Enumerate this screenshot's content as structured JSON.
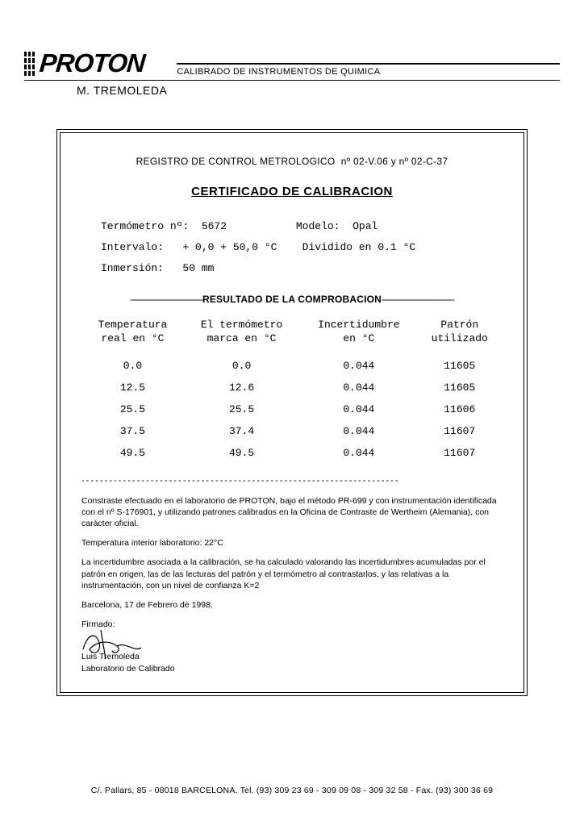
{
  "header": {
    "company": "PROTON",
    "right_text": "CALIBRADO DE INSTRUMENTOS DE QUIMICA",
    "subtitle": "M. TREMOLEDA"
  },
  "certificate": {
    "registro_label": "REGISTRO DE CONTROL METROLOGICO",
    "registro_nums": "nº 02-V.06 y nº 02-C-37",
    "title": "CERTIFICADO DE CALIBRACION",
    "info": {
      "termometro_label": "Termómetro nº:",
      "termometro_value": "5672",
      "modelo_label": "Modelo:",
      "modelo_value": "Opal",
      "intervalo_label": "Intervalo:",
      "intervalo_value": "+ 0,0 + 50,0 °C",
      "dividido_label": "Dividido en",
      "dividido_value": "0.1 °C",
      "inmersion_label": "Inmersión:",
      "inmersion_value": "50 mm"
    },
    "results_header": "RESULTADO DE LA COMPROBACION",
    "columns": {
      "col1_line1": "Temperatura",
      "col1_line2": "real en °C",
      "col2_line1": "El termómetro",
      "col2_line2": "marca en °C",
      "col3_line1": "Incertidumbre",
      "col3_line2": "en  °C",
      "col4_line1": "Patrón",
      "col4_line2": "utilizado"
    },
    "rows": [
      {
        "real": "0.0",
        "marca": "0.0",
        "incert": "0.044",
        "patron": "11605"
      },
      {
        "real": "12.5",
        "marca": "12.6",
        "incert": "0.044",
        "patron": "11605"
      },
      {
        "real": "25.5",
        "marca": "25.5",
        "incert": "0.044",
        "patron": "11606"
      },
      {
        "real": "37.5",
        "marca": "37.4",
        "incert": "0.044",
        "patron": "11607"
      },
      {
        "real": "49.5",
        "marca": "49.5",
        "incert": "0.044",
        "patron": "11607"
      }
    ],
    "notes": {
      "p1": "Constraste efectuado en el laboratorio de PROTON, bajo el método PR-699 y con instrumentación identificada con el nº S-176901, y utilizando patrones calibrados en la Oficina de Contraste de Wertheim (Alemania), con carácter oficial.",
      "p2": "Temperatura interior laboratorio: 22°C",
      "p3": "La incertidumbre asociada a la calibración, se ha calculado valorando las incertidumbres acumuladas por el patrón en origen, las de las lecturas del patrón y el termómetro al contrastarlos, y las relativas a la instrumentación, con un nivel de confianza K=2",
      "p4": "Barcelona, 17 de Febrero de 1998."
    },
    "signature": {
      "firmado": "Firmado:",
      "name": "Luis Tremoleda",
      "dept": "Laboratorio de Calibrado"
    }
  },
  "footer": "C/. Pallars, 85 - 08018 BARCELONA.  Tel. (93) 309 23 69 - 309 09 08 - 309 32 58 - Fax. (93) 300 36 69",
  "colors": {
    "text": "#000000",
    "background": "#ffffff"
  }
}
